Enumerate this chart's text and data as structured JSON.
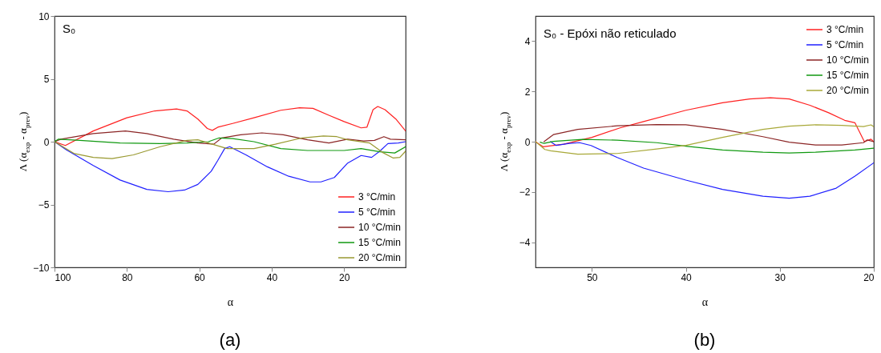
{
  "chart_data": [
    {
      "type": "line",
      "title": "S₀",
      "xlabel": "α",
      "ylabel": "Λ (α$_{exp}$ - α$_{prev}$)",
      "annotations": [
        "(a)"
      ],
      "xlim": [
        100,
        3
      ],
      "xticks": [
        100,
        80,
        60,
        40,
        20
      ],
      "ylim": [
        -10,
        10
      ],
      "yticks": [
        -10,
        -5,
        0,
        5,
        10
      ],
      "grid": false,
      "legend": "bottom right",
      "marker": "none",
      "line_style": "solid",
      "series": [
        {
          "name": "3 °C/min",
          "color": "#ff2020",
          "x": [
            100,
            97,
            89.3,
            80,
            72.3,
            66.3,
            63.4,
            60.4,
            57.8,
            56.4,
            54.9,
            50.8,
            44.9,
            37.5,
            32.3,
            28.6,
            24.2,
            20,
            15.3,
            13.7,
            12,
            10.7,
            8.7,
            5.7,
            3
          ],
          "values": [
            0,
            -0.3,
            0.85,
            1.9,
            2.45,
            2.6,
            2.45,
            1.8,
            1.05,
            0.9,
            1.15,
            1.45,
            1.9,
            2.5,
            2.7,
            2.65,
            2.1,
            1.6,
            1.1,
            1.15,
            2.55,
            2.8,
            2.55,
            1.8,
            0.85
          ]
        },
        {
          "name": "5 °C/min",
          "color": "#2020ff",
          "x": [
            100,
            96.7,
            89.3,
            81.9,
            74.5,
            68.6,
            64.1,
            60.4,
            56.7,
            54.9,
            53,
            51.6,
            47.1,
            41.2,
            35.3,
            29.4,
            26.4,
            22.7,
            19,
            15.3,
            12.4,
            10.1,
            7.9,
            5,
            3
          ],
          "values": [
            0,
            -0.65,
            -1.9,
            -3.05,
            -3.8,
            -3.98,
            -3.85,
            -3.4,
            -2.35,
            -1.5,
            -0.55,
            -0.4,
            -1.05,
            -2,
            -2.75,
            -3.2,
            -3.2,
            -2.85,
            -1.7,
            -1.1,
            -1.25,
            -0.75,
            -0.15,
            -0.1,
            0
          ]
        },
        {
          "name": "10 °C/min",
          "color": "#8b2525",
          "x": [
            100,
            98.2,
            89.3,
            80.4,
            74.5,
            67.1,
            60.4,
            56,
            53.8,
            48.6,
            42.7,
            36.8,
            30.1,
            24.2,
            19,
            14.6,
            11.6,
            9,
            7.2,
            3
          ],
          "values": [
            0,
            0.2,
            0.65,
            0.85,
            0.65,
            0.2,
            -0.1,
            -0.2,
            0.3,
            0.55,
            0.7,
            0.55,
            0.15,
            -0.1,
            0.2,
            0.05,
            0.1,
            0.4,
            0.2,
            0.15
          ]
        },
        {
          "name": "15 °C/min",
          "color": "#109910",
          "x": [
            100,
            98.9,
            93,
            81.9,
            70.8,
            63.4,
            57.5,
            54.5,
            50.8,
            44.9,
            37.5,
            30.1,
            20,
            15.3,
            10.1,
            6,
            3
          ],
          "values": [
            0,
            0.2,
            0.1,
            -0.1,
            -0.15,
            -0.1,
            0,
            0.3,
            0.25,
            0,
            -0.55,
            -0.7,
            -0.7,
            -0.55,
            -0.8,
            -0.9,
            -0.4
          ]
        },
        {
          "name": "20 °C/min",
          "color": "#999930",
          "x": [
            100,
            94.5,
            89.3,
            84.1,
            78.2,
            70.8,
            63.4,
            60.4,
            57.5,
            52.3,
            44.9,
            39,
            31.6,
            25.7,
            22,
            19,
            13,
            9.4,
            6.4,
            4.6,
            3
          ],
          "values": [
            0,
            -0.95,
            -1.25,
            -1.35,
            -1.05,
            -0.4,
            0.1,
            0.15,
            -0.1,
            -0.55,
            -0.55,
            -0.2,
            0.3,
            0.45,
            0.4,
            0.15,
            -0.1,
            -0.85,
            -1.3,
            -1.25,
            -0.75
          ]
        }
      ]
    },
    {
      "type": "line",
      "title": "S₀ - Epóxi não reticulado",
      "xlabel": "α",
      "ylabel": "Λ (α$_{exp}$ - α$_{prev}$)",
      "annotations": [
        "(b)"
      ],
      "xlim": [
        56,
        20
      ],
      "xticks": [
        50,
        40,
        30,
        20
      ],
      "ylim": [
        -5,
        5
      ],
      "yticks": [
        -4,
        -2,
        0,
        2,
        4
      ],
      "grid": false,
      "legend": "top right",
      "marker": "none",
      "line_style": "solid",
      "series": [
        {
          "name": "3 °C/min",
          "color": "#ff2020",
          "x": [
            56,
            55.2,
            53,
            50,
            47,
            44.5,
            40,
            36.1,
            33.2,
            31,
            29,
            26.8,
            24.8,
            23.1,
            22,
            21,
            20.3,
            20
          ],
          "values": [
            0,
            -0.2,
            -0.1,
            0.17,
            0.55,
            0.8,
            1.25,
            1.55,
            1.7,
            1.75,
            1.7,
            1.45,
            1.15,
            0.85,
            0.75,
            0,
            0.1,
            0
          ]
        },
        {
          "name": "5 °C/min",
          "color": "#2020ff",
          "x": [
            54.4,
            53.8,
            52.4,
            51.3,
            50.1,
            47.3,
            44.5,
            40,
            36.1,
            31.8,
            29,
            26.8,
            24,
            22,
            20
          ],
          "values": [
            0,
            -0.15,
            -0.07,
            -0.04,
            -0.15,
            -0.63,
            -1.05,
            -1.53,
            -1.9,
            -2.17,
            -2.25,
            -2.17,
            -1.85,
            -1.37,
            -0.84
          ]
        },
        {
          "name": "10 °C/min",
          "color": "#8b2525",
          "x": [
            55.1,
            54.1,
            51.5,
            47.3,
            43.1,
            40,
            36.1,
            31.8,
            29,
            26.2,
            23.4,
            21.1,
            20.7,
            20
          ],
          "values": [
            0,
            0.28,
            0.49,
            0.63,
            0.68,
            0.67,
            0.49,
            0.2,
            -0.02,
            -0.13,
            -0.13,
            -0.04,
            0.07,
            0
          ]
        },
        {
          "name": "15 °C/min",
          "color": "#109910",
          "x": [
            55.5,
            55.1,
            54.1,
            51,
            47.3,
            43.1,
            40,
            36.1,
            31.8,
            29,
            26.2,
            22,
            20
          ],
          "values": [
            -0.02,
            -0.07,
            0.01,
            0.09,
            0.06,
            -0.04,
            -0.18,
            -0.33,
            -0.42,
            -0.45,
            -0.42,
            -0.33,
            -0.26
          ]
        },
        {
          "name": "20 °C/min",
          "color": "#a8a838",
          "x": [
            56,
            55,
            54.4,
            51.5,
            47.3,
            43.1,
            40,
            36.1,
            31.8,
            29,
            26.2,
            23.4,
            21.1,
            20.3,
            20
          ],
          "values": [
            0,
            -0.31,
            -0.36,
            -0.5,
            -0.47,
            -0.29,
            -0.15,
            0.17,
            0.49,
            0.62,
            0.67,
            0.65,
            0.6,
            0.67,
            0.6
          ]
        }
      ]
    }
  ]
}
